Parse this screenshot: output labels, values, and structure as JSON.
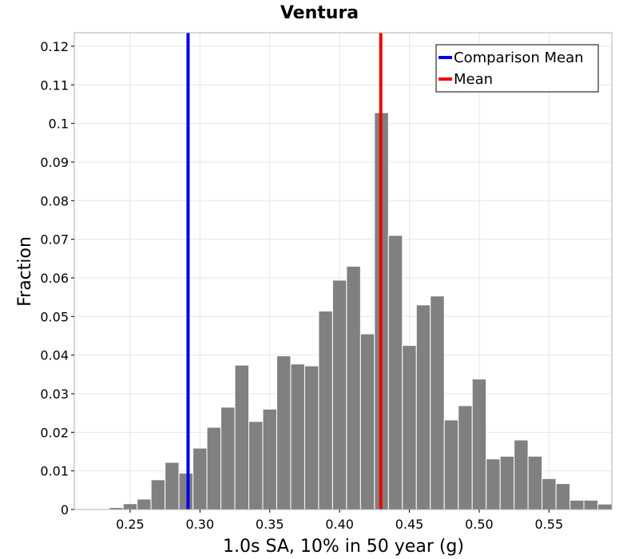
{
  "chart_data": {
    "type": "bar",
    "title": "Ventura",
    "xlabel": "1.0s SA, 10% in 50 year (g)",
    "ylabel": "Fraction",
    "xlim": [
      0.21,
      0.595
    ],
    "ylim": [
      0,
      0.1235
    ],
    "bin_width": 0.01,
    "x_ticks": [
      {
        "value": 0.25,
        "label": "0.25"
      },
      {
        "value": 0.3,
        "label": "0.30"
      },
      {
        "value": 0.35,
        "label": "0.35"
      },
      {
        "value": 0.4,
        "label": "0.40"
      },
      {
        "value": 0.45,
        "label": "0.45"
      },
      {
        "value": 0.5,
        "label": "0.50"
      },
      {
        "value": 0.55,
        "label": "0.55"
      }
    ],
    "y_ticks": [
      {
        "value": 0,
        "label": "0"
      },
      {
        "value": 0.01,
        "label": "0.01"
      },
      {
        "value": 0.02,
        "label": "0.02"
      },
      {
        "value": 0.03,
        "label": "0.03"
      },
      {
        "value": 0.04,
        "label": "0.04"
      },
      {
        "value": 0.05,
        "label": "0.05"
      },
      {
        "value": 0.06,
        "label": "0.06"
      },
      {
        "value": 0.07,
        "label": "0.07"
      },
      {
        "value": 0.08,
        "label": "0.08"
      },
      {
        "value": 0.09,
        "label": "0.09"
      },
      {
        "value": 0.1,
        "label": "0.1"
      },
      {
        "value": 0.11,
        "label": "0.11"
      },
      {
        "value": 0.12,
        "label": "0.12"
      }
    ],
    "bins": [
      {
        "x": 0.23,
        "value": 0.0002
      },
      {
        "x": 0.24,
        "value": 0.0005
      },
      {
        "x": 0.25,
        "value": 0.0015
      },
      {
        "x": 0.26,
        "value": 0.0027
      },
      {
        "x": 0.27,
        "value": 0.0077
      },
      {
        "x": 0.28,
        "value": 0.0122
      },
      {
        "x": 0.29,
        "value": 0.0094
      },
      {
        "x": 0.3,
        "value": 0.0159
      },
      {
        "x": 0.31,
        "value": 0.0213
      },
      {
        "x": 0.32,
        "value": 0.0265
      },
      {
        "x": 0.33,
        "value": 0.0374
      },
      {
        "x": 0.34,
        "value": 0.0228
      },
      {
        "x": 0.35,
        "value": 0.026
      },
      {
        "x": 0.36,
        "value": 0.0398
      },
      {
        "x": 0.37,
        "value": 0.0377
      },
      {
        "x": 0.38,
        "value": 0.0372
      },
      {
        "x": 0.39,
        "value": 0.0514
      },
      {
        "x": 0.4,
        "value": 0.0594
      },
      {
        "x": 0.41,
        "value": 0.063
      },
      {
        "x": 0.42,
        "value": 0.0455
      },
      {
        "x": 0.43,
        "value": 0.1028
      },
      {
        "x": 0.44,
        "value": 0.071
      },
      {
        "x": 0.45,
        "value": 0.0425
      },
      {
        "x": 0.46,
        "value": 0.053
      },
      {
        "x": 0.47,
        "value": 0.0553
      },
      {
        "x": 0.48,
        "value": 0.0232
      },
      {
        "x": 0.49,
        "value": 0.0269
      },
      {
        "x": 0.5,
        "value": 0.0338
      },
      {
        "x": 0.51,
        "value": 0.0131
      },
      {
        "x": 0.52,
        "value": 0.0138
      },
      {
        "x": 0.53,
        "value": 0.018
      },
      {
        "x": 0.54,
        "value": 0.0138
      },
      {
        "x": 0.55,
        "value": 0.008
      },
      {
        "x": 0.56,
        "value": 0.0067
      },
      {
        "x": 0.57,
        "value": 0.0024
      },
      {
        "x": 0.58,
        "value": 0.0024
      },
      {
        "x": 0.59,
        "value": 0.0014
      }
    ],
    "vlines": [
      {
        "name": "Comparison Mean",
        "x": 0.2915,
        "color": "#0000ee"
      },
      {
        "name": "Mean",
        "x": 0.4295,
        "color": "#ee0000"
      }
    ],
    "legend": [
      {
        "label": "Comparison Mean",
        "color": "#0000ee"
      },
      {
        "label": "Mean",
        "color": "#ee0000"
      }
    ],
    "legend_position": "top-right",
    "grid": true
  }
}
